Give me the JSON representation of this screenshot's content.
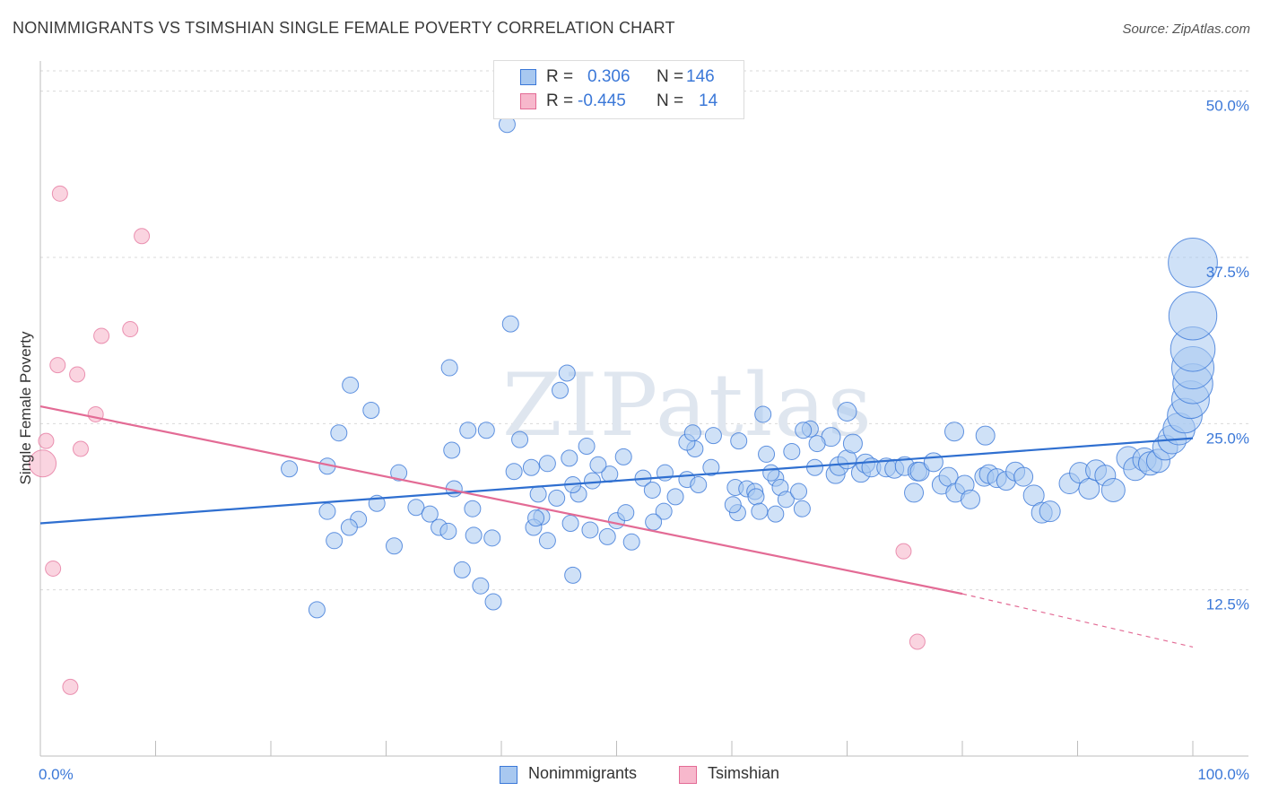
{
  "title": "NONIMMIGRANTS VS TSIMSHIAN SINGLE FEMALE POVERTY CORRELATION CHART",
  "source": "Source: ZipAtlas.com",
  "watermark": "ZIPatlas",
  "legend": {
    "rows": [
      {
        "r_label": "R =",
        "r_value": "0.306",
        "n_label": "N =",
        "n_value": "146",
        "color": "#a8c8f0",
        "border": "#3b78d8"
      },
      {
        "r_label": "R =",
        "r_value": "-0.445",
        "n_label": "N =",
        "n_value": "14",
        "color": "#f7b8cc",
        "border": "#e36b95"
      }
    ]
  },
  "bottom_legend": [
    {
      "label": "Nonimmigrants",
      "color": "#a8c8f0",
      "border": "#3b78d8"
    },
    {
      "label": "Tsimshian",
      "color": "#f7b8cc",
      "border": "#e36b95"
    }
  ],
  "chart_data": {
    "type": "scatter",
    "title": "NONIMMIGRANTS VS TSIMSHIAN SINGLE FEMALE POVERTY CORRELATION CHART",
    "xlabel": "",
    "ylabel": "Single Female Poverty",
    "xlim": [
      0,
      100
    ],
    "ylim": [
      0,
      52
    ],
    "x_tick_labels": [
      "0.0%",
      "100.0%"
    ],
    "y_ticks": [
      12.5,
      25.0,
      37.5,
      50.0
    ],
    "y_tick_labels": [
      "12.5%",
      "25.0%",
      "37.5%",
      "50.0%"
    ],
    "grid": true,
    "series": [
      {
        "name": "Nonimmigrants",
        "color": "#a8c8f0",
        "stroke": "#3b78d8",
        "trend": {
          "x0": 0,
          "y0": 17.5,
          "x1": 100,
          "y1": 23.9
        },
        "points": [
          [
            40.5,
            47.5,
            1
          ],
          [
            40.8,
            32.5,
            1
          ],
          [
            35.5,
            29.2,
            1
          ],
          [
            37.1,
            24.5,
            1
          ],
          [
            45.7,
            28.8,
            1
          ],
          [
            45.1,
            27.5,
            1
          ],
          [
            26.9,
            27.9,
            1
          ],
          [
            28.7,
            26.0,
            1
          ],
          [
            35.7,
            23.0,
            1
          ],
          [
            25.9,
            24.3,
            1
          ],
          [
            21.6,
            21.6,
            1
          ],
          [
            24.9,
            21.8,
            1
          ],
          [
            31.1,
            21.3,
            1
          ],
          [
            41.1,
            21.4,
            1
          ],
          [
            38.7,
            24.5,
            1
          ],
          [
            41.6,
            23.8,
            1
          ],
          [
            24.9,
            18.4,
            1
          ],
          [
            29.2,
            19.0,
            1
          ],
          [
            32.6,
            18.7,
            1
          ],
          [
            33.8,
            18.2,
            1
          ],
          [
            35.9,
            20.1,
            1
          ],
          [
            37.5,
            18.6,
            1
          ],
          [
            43.2,
            19.7,
            1
          ],
          [
            44.8,
            19.4,
            1
          ],
          [
            46.7,
            19.7,
            1
          ],
          [
            46.2,
            20.4,
            1
          ],
          [
            47.9,
            20.7,
            1
          ],
          [
            43.5,
            18.0,
            1
          ],
          [
            27.6,
            17.8,
            1
          ],
          [
            26.8,
            17.2,
            1
          ],
          [
            34.6,
            17.2,
            1
          ],
          [
            35.4,
            16.9,
            1
          ],
          [
            37.6,
            16.6,
            1
          ],
          [
            39.2,
            16.4,
            1
          ],
          [
            42.8,
            17.2,
            1
          ],
          [
            43.0,
            17.9,
            1
          ],
          [
            44.0,
            16.2,
            1
          ],
          [
            46.0,
            17.5,
            1
          ],
          [
            47.7,
            17.0,
            1
          ],
          [
            49.2,
            16.5,
            1
          ],
          [
            50.0,
            17.7,
            1
          ],
          [
            51.3,
            16.1,
            1
          ],
          [
            50.8,
            18.3,
            1
          ],
          [
            25.5,
            16.2,
            1
          ],
          [
            30.7,
            15.8,
            1
          ],
          [
            36.6,
            14.0,
            1
          ],
          [
            38.2,
            12.8,
            1
          ],
          [
            46.2,
            13.6,
            1
          ],
          [
            24.0,
            11.0,
            1
          ],
          [
            39.3,
            11.6,
            1
          ],
          [
            52.3,
            20.9,
            1
          ],
          [
            53.1,
            20.0,
            1
          ],
          [
            54.2,
            21.3,
            1
          ],
          [
            56.1,
            20.8,
            1
          ],
          [
            57.1,
            20.4,
            1
          ],
          [
            56.8,
            23.1,
            1
          ],
          [
            56.1,
            23.6,
            1
          ],
          [
            56.6,
            24.3,
            1
          ],
          [
            58.2,
            21.7,
            1
          ],
          [
            60.3,
            20.2,
            1
          ],
          [
            60.5,
            18.3,
            1
          ],
          [
            61.3,
            20.1,
            1
          ],
          [
            62.0,
            19.9,
            1
          ],
          [
            62.1,
            19.5,
            1
          ],
          [
            63.8,
            20.9,
            1
          ],
          [
            63.4,
            21.3,
            1
          ],
          [
            64.2,
            20.2,
            1
          ],
          [
            64.7,
            19.3,
            1
          ],
          [
            62.4,
            18.4,
            1
          ],
          [
            63.8,
            18.2,
            1
          ],
          [
            65.8,
            19.9,
            1
          ],
          [
            66.1,
            18.6,
            1
          ],
          [
            60.1,
            18.9,
            1
          ],
          [
            62.7,
            25.7,
            1
          ],
          [
            65.2,
            22.9,
            1
          ],
          [
            67.2,
            21.7,
            1
          ],
          [
            66.8,
            24.6,
            1
          ],
          [
            69.0,
            21.2,
            1
          ],
          [
            69.3,
            21.8,
            1
          ],
          [
            70.0,
            22.3,
            1
          ],
          [
            70.5,
            23.5,
            1
          ],
          [
            71.2,
            21.3,
            1
          ],
          [
            71.6,
            22.0,
            1
          ],
          [
            72.1,
            21.7,
            1
          ],
          [
            73.4,
            21.7,
            1
          ],
          [
            74.1,
            21.6,
            1
          ],
          [
            75.0,
            21.8,
            1
          ],
          [
            75.8,
            19.8,
            1
          ],
          [
            76.1,
            21.4,
            1
          ],
          [
            76.3,
            21.4,
            1
          ],
          [
            77.5,
            22.1,
            1
          ],
          [
            78.2,
            20.4,
            1
          ],
          [
            78.8,
            21.0,
            1
          ],
          [
            79.4,
            19.8,
            1
          ],
          [
            80.2,
            20.4,
            1
          ],
          [
            80.7,
            19.3,
            1
          ],
          [
            81.9,
            21.0,
            1
          ],
          [
            82.3,
            21.2,
            1
          ],
          [
            83.0,
            20.9,
            1
          ],
          [
            83.8,
            20.7,
            1
          ],
          [
            84.6,
            21.4,
            1
          ],
          [
            85.3,
            21.0,
            1
          ],
          [
            86.2,
            19.6,
            1
          ],
          [
            86.9,
            18.3,
            1
          ],
          [
            87.6,
            18.4,
            1
          ],
          [
            89.3,
            20.5,
            1
          ],
          [
            90.2,
            21.3,
            1
          ],
          [
            91.0,
            20.1,
            1
          ],
          [
            91.6,
            21.5,
            1
          ],
          [
            92.4,
            21.1,
            1
          ],
          [
            93.1,
            20.0,
            1
          ],
          [
            94.4,
            22.4,
            1
          ],
          [
            95.0,
            21.6,
            1
          ],
          [
            95.8,
            22.3,
            1
          ],
          [
            96.3,
            22.0,
            1
          ],
          [
            97.0,
            22.2,
            1
          ],
          [
            97.6,
            23.2,
            1
          ],
          [
            98.2,
            23.8,
            1
          ],
          [
            98.8,
            24.6,
            1
          ],
          [
            99.3,
            25.6,
            1
          ],
          [
            99.8,
            26.8,
            1
          ],
          [
            100.2,
            28.0,
            1
          ],
          [
            100.6,
            29.2,
            1
          ],
          [
            101.0,
            30.6,
            1
          ],
          [
            101.6,
            33.1,
            1
          ],
          [
            101.8,
            37.1,
            1
          ],
          [
            70.0,
            25.9,
            1
          ],
          [
            68.6,
            24.0,
            1
          ],
          [
            79.3,
            24.4,
            1
          ],
          [
            82.0,
            24.1,
            1
          ],
          [
            66.2,
            24.5,
            1
          ],
          [
            67.4,
            23.5,
            1
          ],
          [
            60.6,
            23.7,
            1
          ],
          [
            58.4,
            24.1,
            1
          ],
          [
            63.0,
            22.7,
            1
          ],
          [
            55.1,
            19.5,
            1
          ],
          [
            54.1,
            18.4,
            1
          ],
          [
            53.2,
            17.6,
            1
          ],
          [
            49.4,
            21.2,
            1
          ],
          [
            50.6,
            22.5,
            1
          ],
          [
            48.4,
            21.9,
            1
          ],
          [
            47.4,
            23.3,
            1
          ],
          [
            45.9,
            22.4,
            1
          ],
          [
            44.0,
            22.0,
            1
          ],
          [
            42.6,
            21.7,
            1
          ]
        ]
      },
      {
        "name": "Tsimshian",
        "color": "#f7b8cc",
        "stroke": "#e36b95",
        "trend": {
          "x0": 0,
          "y0": 26.3,
          "x1": 80,
          "y1": 12.2,
          "dash_to_x": 100,
          "dash_to_y": 8.2
        },
        "points": [
          [
            1.7,
            42.3
          ],
          [
            8.8,
            39.1
          ],
          [
            7.8,
            32.1
          ],
          [
            5.3,
            31.6
          ],
          [
            1.5,
            29.4
          ],
          [
            3.2,
            28.7
          ],
          [
            4.8,
            25.7
          ],
          [
            0.5,
            23.7
          ],
          [
            3.5,
            23.1
          ],
          [
            0.2,
            22.0
          ],
          [
            1.1,
            14.1
          ],
          [
            74.9,
            15.4
          ],
          [
            76.1,
            8.6
          ],
          [
            2.6,
            5.2
          ]
        ]
      }
    ]
  }
}
